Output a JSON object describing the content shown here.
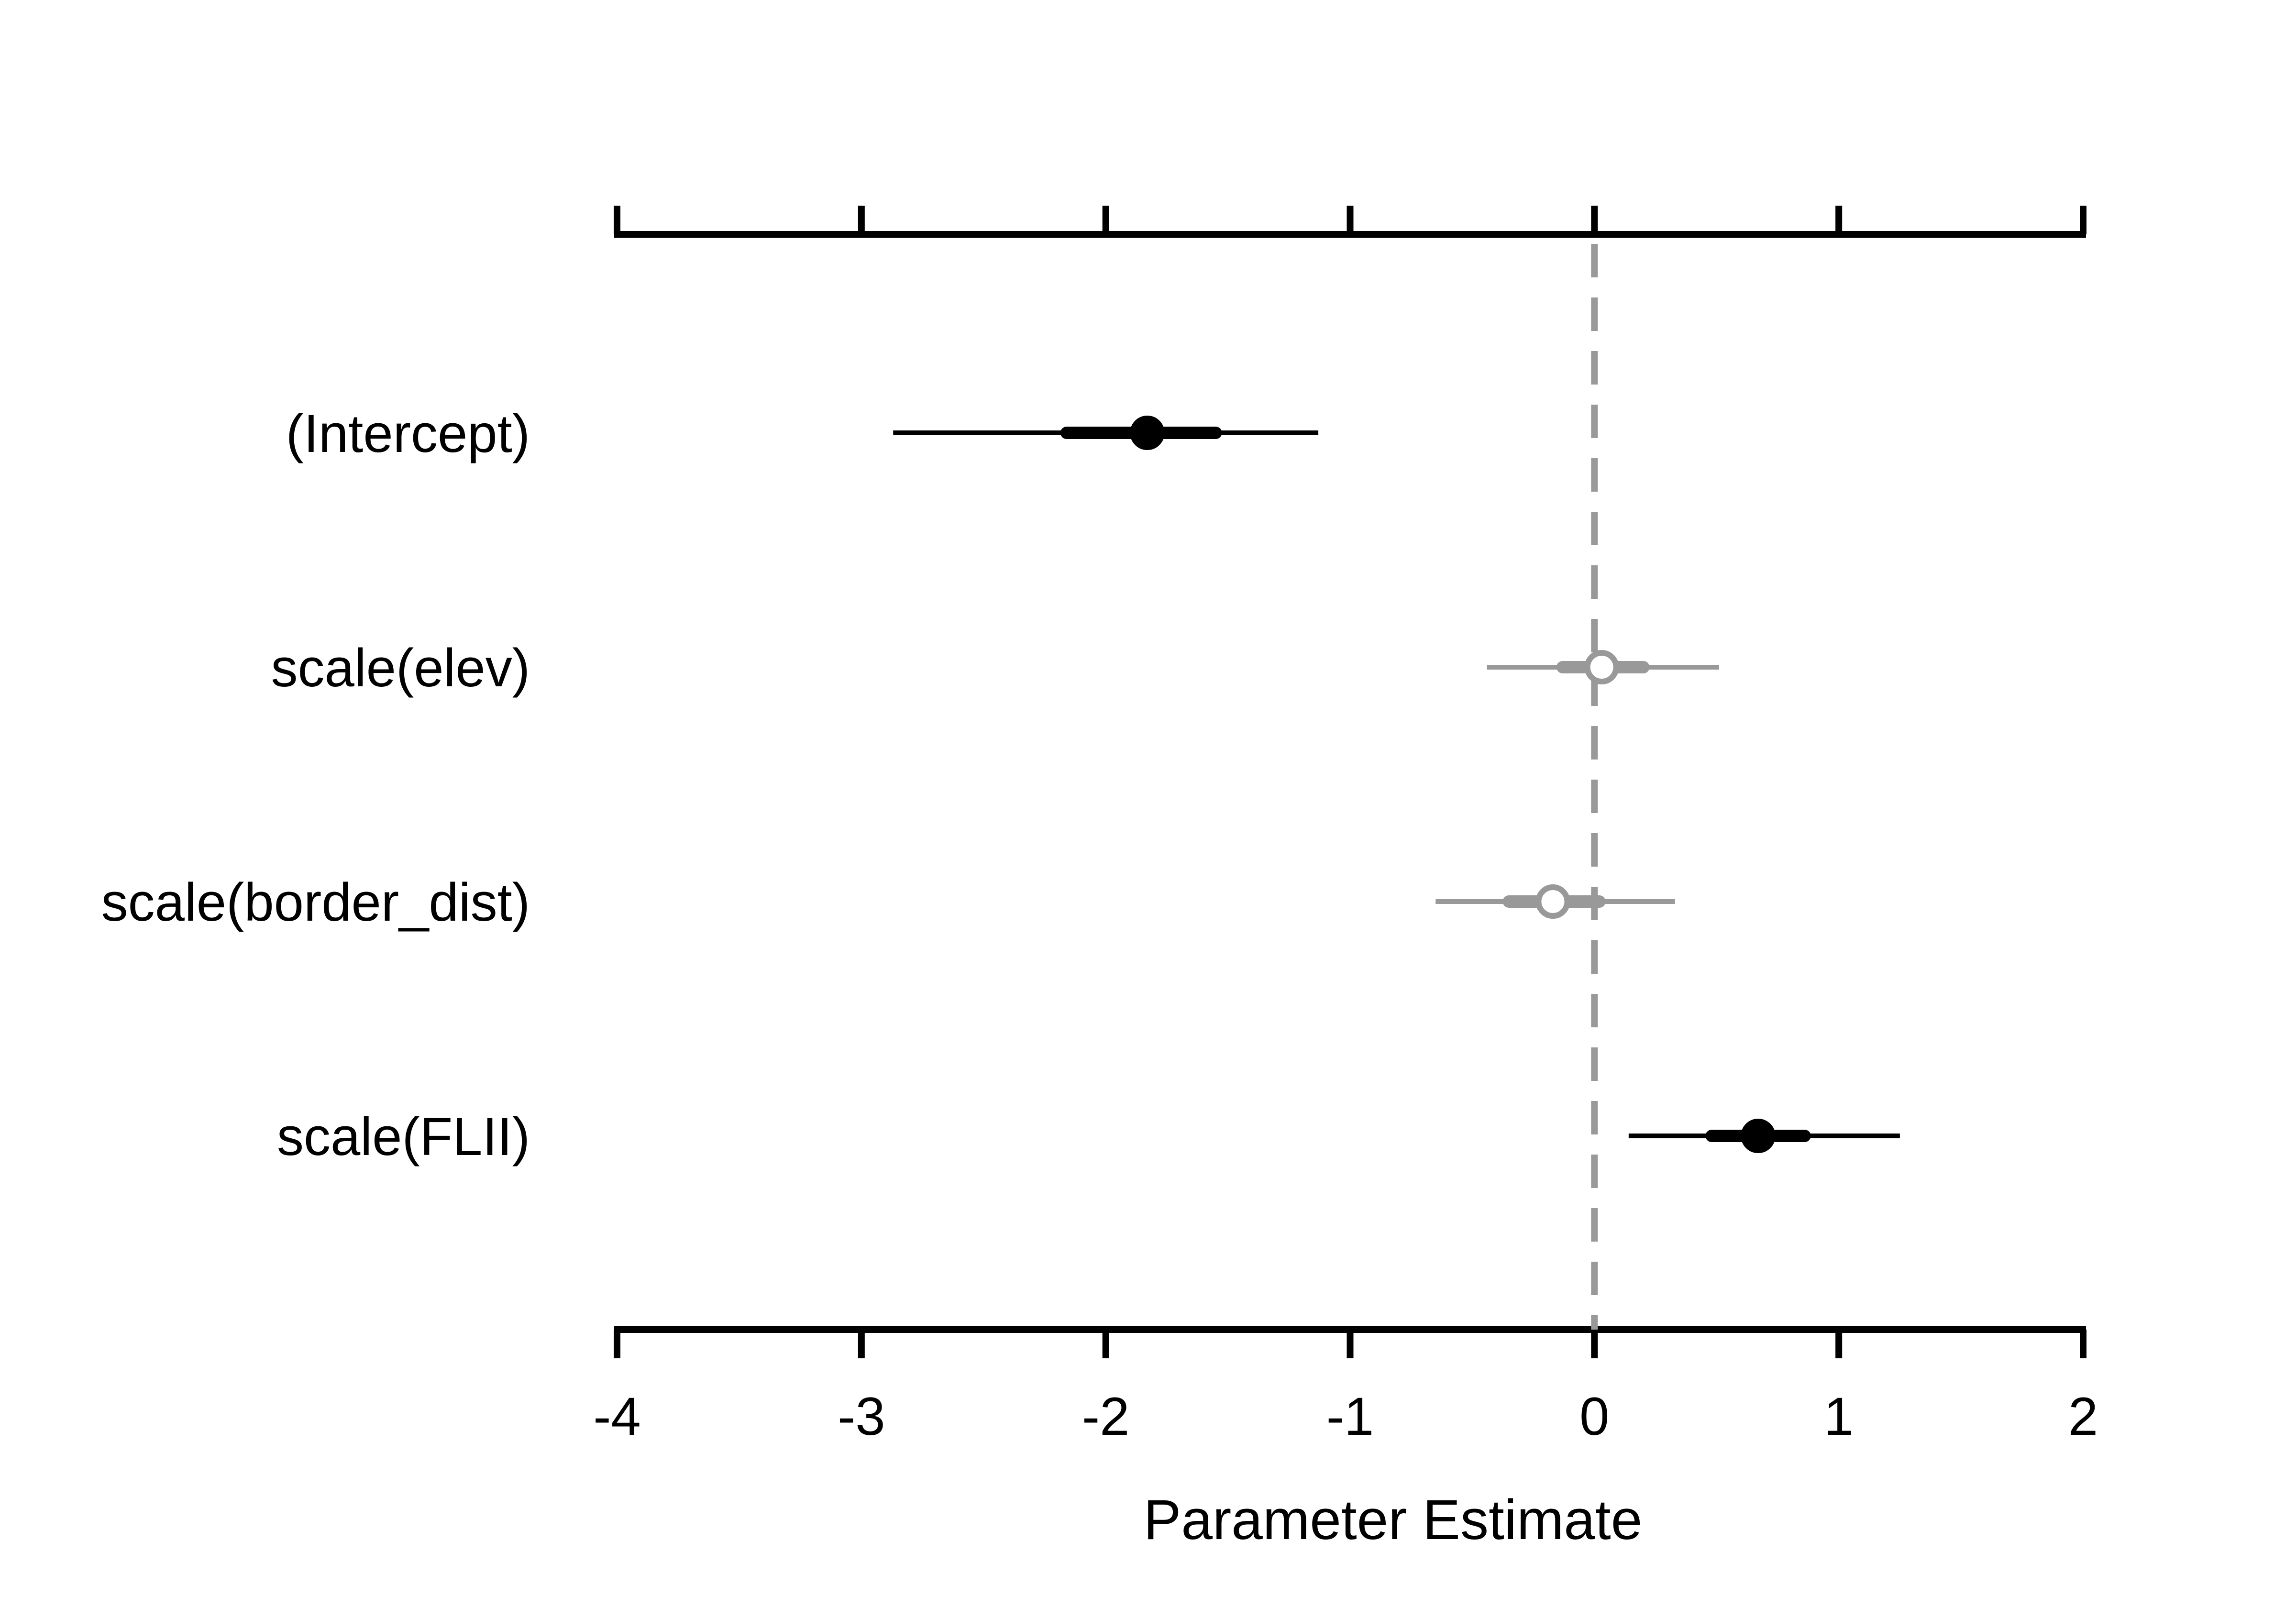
{
  "chart_data": {
    "type": "coefficient-plot",
    "title": "",
    "xlabel": "Parameter Estimate",
    "ylabel": "",
    "xlim": [
      -4,
      2
    ],
    "x_ticks": [
      -4,
      -3,
      -2,
      -1,
      0,
      1,
      2
    ],
    "x_tick_labels": [
      "-4",
      "-3",
      "-2",
      "-1",
      "0",
      "1",
      "2"
    ],
    "reference_line": {
      "x": 0,
      "style": "dashed",
      "color": "#999999"
    },
    "grid": false,
    "legend": "none",
    "significant_color": "#000000",
    "nonsignificant_color": "#999999",
    "parameters": [
      {
        "label": "(Intercept)",
        "estimate": -1.83,
        "inner": [
          -2.16,
          -1.55
        ],
        "outer": [
          -2.87,
          -1.13
        ],
        "significant": true
      },
      {
        "label": "scale(elev)",
        "estimate": 0.03,
        "inner": [
          -0.13,
          0.2
        ],
        "outer": [
          -0.44,
          0.51
        ],
        "significant": false
      },
      {
        "label": "scale(border_dist)",
        "estimate": -0.17,
        "inner": [
          -0.35,
          0.02
        ],
        "outer": [
          -0.65,
          0.33
        ],
        "significant": false
      },
      {
        "label": "scale(FLII)",
        "estimate": 0.67,
        "inner": [
          0.48,
          0.86
        ],
        "outer": [
          0.14,
          1.25
        ],
        "significant": true
      }
    ]
  }
}
